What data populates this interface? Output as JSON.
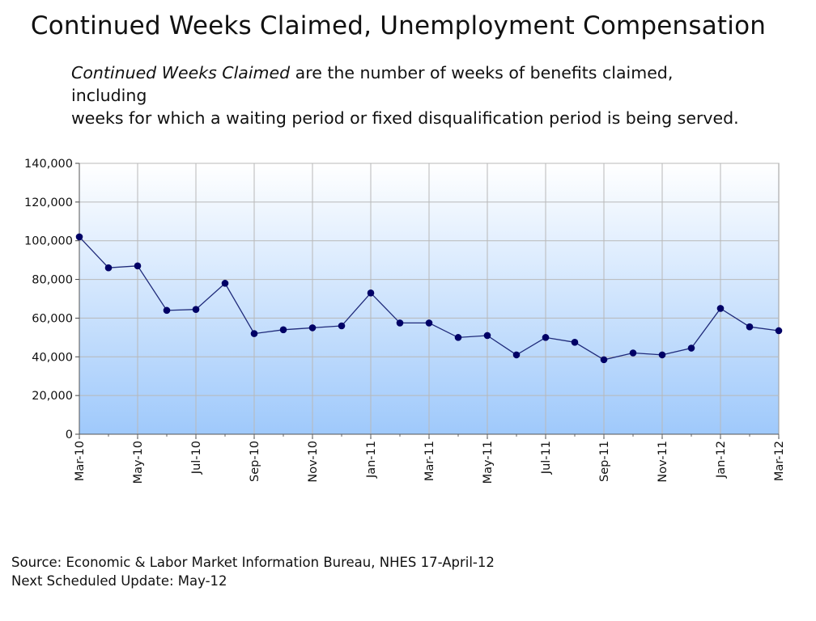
{
  "title": "Continued Weeks Claimed, Unemployment Compensation",
  "description": {
    "term": "Continued Weeks Claimed",
    "rest_line1": " are the number of weeks of benefits claimed, including",
    "line2": "weeks for which a waiting period or fixed disqualification period is being served."
  },
  "footer": {
    "source": "Source: Economic & Labor Market Information Bureau, NHES  17-April-12",
    "next_update": "Next Scheduled Update: May-12"
  },
  "chart_data": {
    "type": "line",
    "ylim": [
      0,
      140000
    ],
    "y_ticks": [
      0,
      20000,
      40000,
      60000,
      80000,
      100000,
      120000,
      140000
    ],
    "y_tick_labels": [
      "0",
      "20,000",
      "40,000",
      "60,000",
      "80,000",
      "100,000",
      "120,000",
      "140,000"
    ],
    "x_tick_labels": [
      "Mar-10",
      "May-10",
      "Jul-10",
      "Sep-10",
      "Nov-10",
      "Jan-11",
      "Mar-11",
      "May-11",
      "Jul-11",
      "Sep-11",
      "Nov-11",
      "Jan-12",
      "Mar-12"
    ],
    "categories": [
      "Mar-10",
      "Apr-10",
      "May-10",
      "Jun-10",
      "Jul-10",
      "Aug-10",
      "Sep-10",
      "Oct-10",
      "Nov-10",
      "Dec-10",
      "Jan-11",
      "Feb-11",
      "Mar-11",
      "Apr-11",
      "May-11",
      "Jun-11",
      "Jul-11",
      "Aug-11",
      "Sep-11",
      "Oct-11",
      "Nov-11",
      "Dec-11",
      "Jan-12",
      "Feb-12",
      "Mar-12"
    ],
    "series": [
      {
        "values": [
          102000,
          86000,
          87000,
          64000,
          64500,
          78000,
          52000,
          54000,
          55000,
          56000,
          73000,
          57500,
          57500,
          50000,
          51000,
          41000,
          50000,
          47500,
          38500,
          42000,
          41000,
          44500,
          65000,
          55500,
          53500
        ]
      }
    ],
    "grid": true,
    "colors": {
      "line": "#1f2a7a",
      "marker": "#000066",
      "fill_top": "#ffffff",
      "fill_bottom": "#9fc9fb",
      "grid": "#b8b8b8"
    }
  }
}
